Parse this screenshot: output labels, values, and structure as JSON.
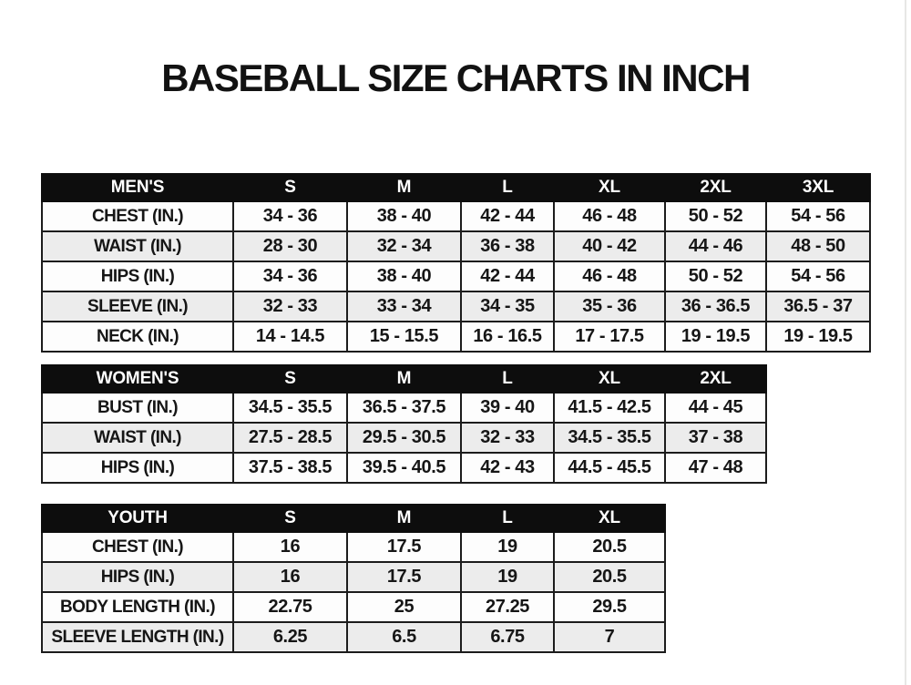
{
  "page": {
    "title": "BASEBALL SIZE CHARTS IN INCH"
  },
  "colors": {
    "header_bg": "#0d0d0d",
    "header_text": "#ffffff",
    "stripe_bg": "#ececec",
    "border": "#1c1c1c",
    "page_bg": "#ffffff"
  },
  "tables": [
    {
      "id": "mens",
      "group_label": "MEN'S",
      "columns": [
        "S",
        "M",
        "L",
        "XL",
        "2XL",
        "3XL"
      ],
      "rows": [
        {
          "label": "CHEST (IN.)",
          "values": [
            "34 - 36",
            "38 - 40",
            "42 - 44",
            "46 - 48",
            "50 - 52",
            "54 - 56"
          ]
        },
        {
          "label": "WAIST (IN.)",
          "values": [
            "28 - 30",
            "32 - 34",
            "36 - 38",
            "40 - 42",
            "44 - 46",
            "48 - 50"
          ]
        },
        {
          "label": "HIPS (IN.)",
          "values": [
            "34 - 36",
            "38 - 40",
            "42 - 44",
            "46 - 48",
            "50 - 52",
            "54 - 56"
          ]
        },
        {
          "label": "SLEEVE (IN.)",
          "values": [
            "32 - 33",
            "33 - 34",
            "34 - 35",
            "35 - 36",
            "36 - 36.5",
            "36.5 - 37"
          ]
        },
        {
          "label": "NECK (IN.)",
          "values": [
            "14 - 14.5",
            "15 - 15.5",
            "16 - 16.5",
            "17 - 17.5",
            "19 - 19.5",
            "19 - 19.5"
          ]
        }
      ]
    },
    {
      "id": "womens",
      "group_label": "WOMEN'S",
      "columns": [
        "S",
        "M",
        "L",
        "XL",
        "2XL"
      ],
      "rows": [
        {
          "label": "BUST (IN.)",
          "values": [
            "34.5 - 35.5",
            "36.5 - 37.5",
            "39 - 40",
            "41.5 - 42.5",
            "44 - 45"
          ]
        },
        {
          "label": "WAIST (IN.)",
          "values": [
            "27.5 - 28.5",
            "29.5 - 30.5",
            "32 - 33",
            "34.5 - 35.5",
            "37 - 38"
          ]
        },
        {
          "label": "HIPS (IN.)",
          "values": [
            "37.5 - 38.5",
            "39.5 - 40.5",
            "42 - 43",
            "44.5 - 45.5",
            "47 - 48"
          ]
        }
      ]
    },
    {
      "id": "youth",
      "group_label": "YOUTH",
      "columns": [
        "S",
        "M",
        "L",
        "XL"
      ],
      "rows": [
        {
          "label": "CHEST (IN.)",
          "values": [
            "16",
            "17.5",
            "19",
            "20.5"
          ]
        },
        {
          "label": "HIPS (IN.)",
          "values": [
            "16",
            "17.5",
            "19",
            "20.5"
          ]
        },
        {
          "label": "BODY LENGTH (IN.)",
          "values": [
            "22.75",
            "25",
            "27.25",
            "29.5"
          ]
        },
        {
          "label": "SLEEVE LENGTH (IN.)",
          "values": [
            "6.25",
            "6.5",
            "6.75",
            "7"
          ]
        }
      ]
    }
  ]
}
